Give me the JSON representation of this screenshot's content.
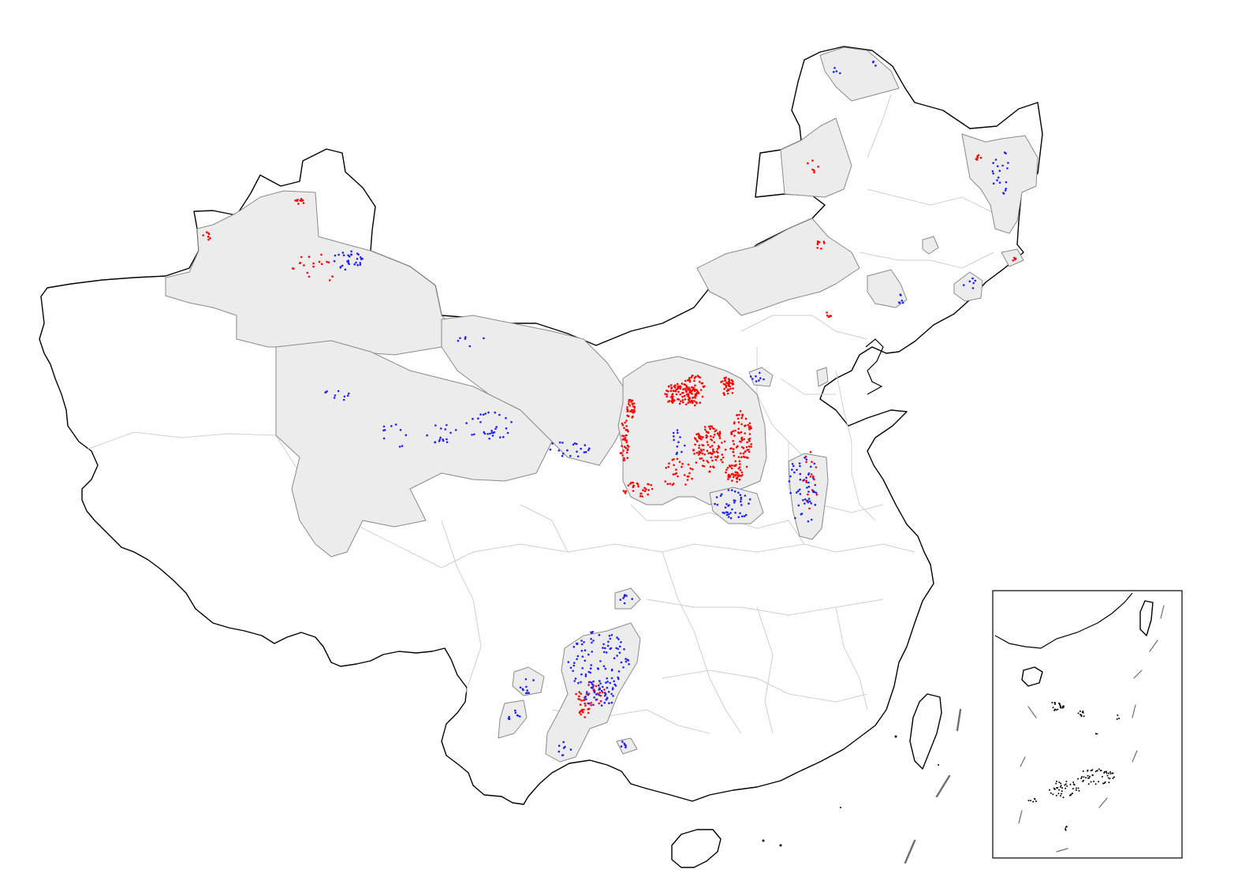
{
  "map": {
    "colors": {
      "background": "#ffffff",
      "country_outline": "#000000",
      "province_border": "#cfcfcf",
      "region_fill": "#ececec",
      "region_border": "#8a8a8a",
      "point_red": "#ff0000",
      "point_blue": "#1f1fff",
      "dash_line": "#6e6e6e"
    },
    "legend": null,
    "title": null,
    "inset_present": true
  }
}
